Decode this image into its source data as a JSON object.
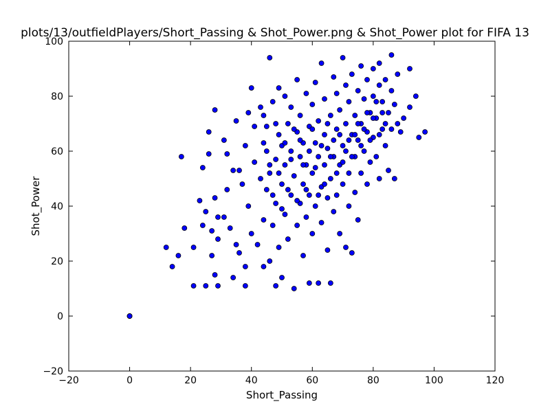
{
  "chart_data": {
    "type": "scatter",
    "title": "plots/13/outfieldPlayers/Short_Passing & Shot_Power.png & Shot_Power plot for FIFA 13",
    "xlabel": "Short_Passing",
    "ylabel": "Shot_Power",
    "xlim": [
      -20,
      120
    ],
    "ylim": [
      -20,
      100
    ],
    "xticks": [
      "−20",
      "0",
      "20",
      "40",
      "60",
      "80",
      "100",
      "120"
    ],
    "yticks": [
      "−20",
      "0",
      "20",
      "40",
      "60",
      "80",
      "100"
    ],
    "grid": false,
    "legend": "none",
    "marker_color": "#0000ff",
    "marker_edge_color": "#000000",
    "points": [
      [
        0,
        0
      ],
      [
        0,
        0
      ],
      [
        0,
        0
      ],
      [
        0,
        0
      ],
      [
        12,
        25
      ],
      [
        14,
        18
      ],
      [
        16,
        22
      ],
      [
        17,
        58
      ],
      [
        18,
        32
      ],
      [
        21,
        11
      ],
      [
        21,
        25
      ],
      [
        23,
        42
      ],
      [
        24,
        33
      ],
      [
        24,
        54
      ],
      [
        25,
        11
      ],
      [
        26,
        67
      ],
      [
        26,
        59
      ],
      [
        25,
        38
      ],
      [
        27,
        22
      ],
      [
        27,
        31
      ],
      [
        28,
        75
      ],
      [
        28,
        43
      ],
      [
        28,
        15
      ],
      [
        29,
        11
      ],
      [
        29,
        36
      ],
      [
        29,
        28
      ],
      [
        31,
        36
      ],
      [
        31,
        64
      ],
      [
        32,
        59
      ],
      [
        32,
        46
      ],
      [
        33,
        32
      ],
      [
        34,
        14
      ],
      [
        34,
        53
      ],
      [
        35,
        26
      ],
      [
        35,
        71
      ],
      [
        36,
        53
      ],
      [
        36,
        23
      ],
      [
        37,
        48
      ],
      [
        38,
        18
      ],
      [
        38,
        11
      ],
      [
        38,
        62
      ],
      [
        39,
        74
      ],
      [
        39,
        40
      ],
      [
        40,
        83
      ],
      [
        40,
        30
      ],
      [
        41,
        69
      ],
      [
        41,
        56
      ],
      [
        42,
        26
      ],
      [
        43,
        50
      ],
      [
        43,
        76
      ],
      [
        44,
        18
      ],
      [
        44,
        63
      ],
      [
        44,
        35
      ],
      [
        45,
        46
      ],
      [
        45,
        69
      ],
      [
        46,
        94
      ],
      [
        46,
        20
      ],
      [
        46,
        52
      ],
      [
        47,
        78
      ],
      [
        47,
        33
      ],
      [
        48,
        11
      ],
      [
        48,
        57
      ],
      [
        48,
        41
      ],
      [
        49,
        83
      ],
      [
        49,
        66
      ],
      [
        49,
        25
      ],
      [
        50,
        14
      ],
      [
        50,
        62
      ],
      [
        50,
        48
      ],
      [
        51,
        80
      ],
      [
        51,
        37
      ],
      [
        51,
        55
      ],
      [
        52,
        70
      ],
      [
        52,
        28
      ],
      [
        53,
        44
      ],
      [
        53,
        76
      ],
      [
        53,
        60
      ],
      [
        54,
        10
      ],
      [
        54,
        51
      ],
      [
        55,
        33
      ],
      [
        55,
        86
      ],
      [
        55,
        67
      ],
      [
        56,
        41
      ],
      [
        56,
        58
      ],
      [
        56,
        73
      ],
      [
        57,
        22
      ],
      [
        57,
        48
      ],
      [
        57,
        63
      ],
      [
        58,
        81
      ],
      [
        58,
        36
      ],
      [
        58,
        55
      ],
      [
        59,
        12
      ],
      [
        59,
        69
      ],
      [
        59,
        44
      ],
      [
        60,
        77
      ],
      [
        60,
        52
      ],
      [
        60,
        30
      ],
      [
        61,
        63
      ],
      [
        61,
        85
      ],
      [
        61,
        40
      ],
      [
        62,
        12
      ],
      [
        62,
        58
      ],
      [
        62,
        71
      ],
      [
        63,
        47
      ],
      [
        63,
        92
      ],
      [
        63,
        34
      ],
      [
        64,
        66
      ],
      [
        64,
        55
      ],
      [
        64,
        79
      ],
      [
        65,
        43
      ],
      [
        65,
        61
      ],
      [
        65,
        24
      ],
      [
        66,
        12
      ],
      [
        66,
        73
      ],
      [
        66,
        50
      ],
      [
        67,
        87
      ],
      [
        67,
        58
      ],
      [
        67,
        38
      ],
      [
        68,
        68
      ],
      [
        68,
        44
      ],
      [
        68,
        81
      ],
      [
        69,
        55
      ],
      [
        69,
        75
      ],
      [
        69,
        30
      ],
      [
        70,
        94
      ],
      [
        70,
        62
      ],
      [
        70,
        48
      ],
      [
        71,
        84
      ],
      [
        71,
        25
      ],
      [
        71,
        70
      ],
      [
        72,
        52
      ],
      [
        72,
        78
      ],
      [
        72,
        40
      ],
      [
        73,
        66
      ],
      [
        73,
        23
      ],
      [
        73,
        88
      ],
      [
        74,
        58
      ],
      [
        74,
        73
      ],
      [
        74,
        45
      ],
      [
        75,
        82
      ],
      [
        75,
        64
      ],
      [
        75,
        35
      ],
      [
        76,
        91
      ],
      [
        76,
        70
      ],
      [
        76,
        52
      ],
      [
        77,
        60
      ],
      [
        77,
        79
      ],
      [
        78,
        86
      ],
      [
        78,
        48
      ],
      [
        78,
        67
      ],
      [
        79,
        74
      ],
      [
        79,
        56
      ],
      [
        80,
        90
      ],
      [
        80,
        65
      ],
      [
        80,
        80
      ],
      [
        81,
        58
      ],
      [
        81,
        72
      ],
      [
        82,
        92
      ],
      [
        82,
        50
      ],
      [
        82,
        84
      ],
      [
        83,
        68
      ],
      [
        83,
        78
      ],
      [
        84,
        86
      ],
      [
        84,
        62
      ],
      [
        85,
        53
      ],
      [
        85,
        74
      ],
      [
        86,
        95
      ],
      [
        86,
        82
      ],
      [
        86,
        68
      ],
      [
        87,
        50
      ],
      [
        87,
        77
      ],
      [
        88,
        88
      ],
      [
        88,
        70
      ],
      [
        89,
        67
      ],
      [
        90,
        72
      ],
      [
        92,
        90
      ],
      [
        92,
        76
      ],
      [
        94,
        80
      ],
      [
        95,
        65
      ],
      [
        97,
        67
      ],
      [
        44,
        73
      ],
      [
        45,
        60
      ],
      [
        46,
        55
      ],
      [
        47,
        44
      ],
      [
        48,
        70
      ],
      [
        49,
        52
      ],
      [
        50,
        39
      ],
      [
        51,
        63
      ],
      [
        52,
        46
      ],
      [
        53,
        57
      ],
      [
        54,
        68
      ],
      [
        55,
        42
      ],
      [
        56,
        64
      ],
      [
        57,
        55
      ],
      [
        58,
        46
      ],
      [
        59,
        60
      ],
      [
        60,
        68
      ],
      [
        61,
        54
      ],
      [
        62,
        44
      ],
      [
        63,
        62
      ],
      [
        64,
        48
      ],
      [
        65,
        70
      ],
      [
        66,
        58
      ],
      [
        67,
        64
      ],
      [
        68,
        52
      ],
      [
        69,
        66
      ],
      [
        70,
        56
      ],
      [
        71,
        60
      ],
      [
        72,
        64
      ],
      [
        73,
        58
      ],
      [
        74,
        66
      ],
      [
        75,
        70
      ],
      [
        76,
        62
      ],
      [
        77,
        68
      ],
      [
        78,
        74
      ],
      [
        79,
        64
      ],
      [
        80,
        72
      ],
      [
        81,
        78
      ],
      [
        82,
        66
      ],
      [
        83,
        74
      ],
      [
        84,
        70
      ]
    ]
  }
}
